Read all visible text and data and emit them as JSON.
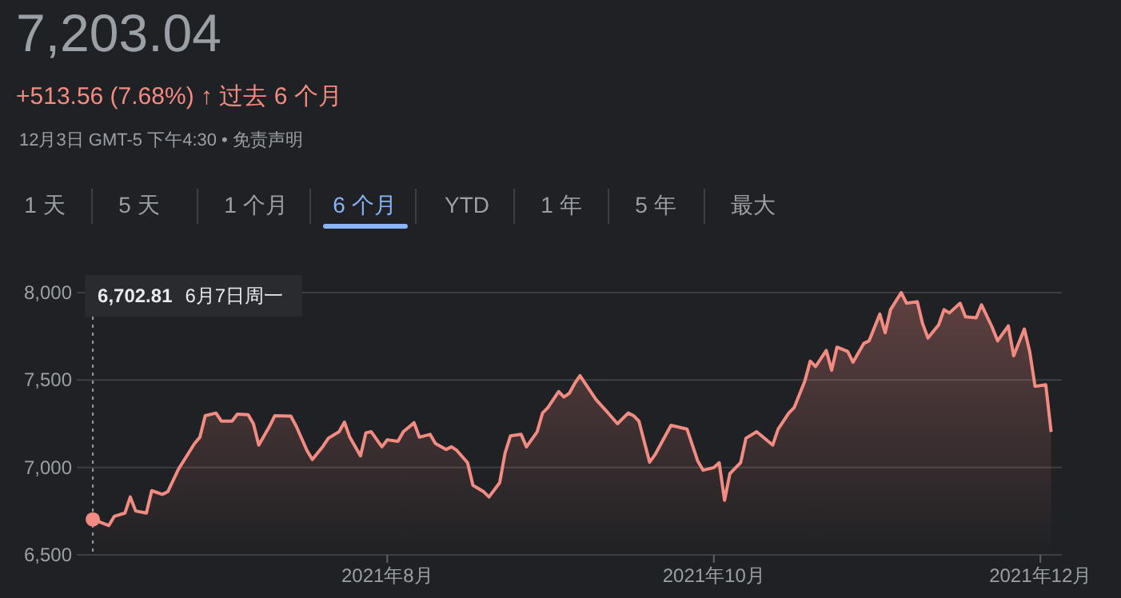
{
  "chart_data": {
    "type": "area",
    "title": "7,203.04",
    "subtitle": "+513.56 (7.68%) ↑ 过去 6 个月",
    "x": [
      "2021-06-07",
      "2021-06-10",
      "2021-06-11",
      "2021-06-13",
      "2021-06-14",
      "2021-06-15",
      "2021-06-17",
      "2021-06-18",
      "2021-06-20",
      "2021-06-21",
      "2021-06-23",
      "2021-06-26",
      "2021-06-27",
      "2021-06-28",
      "2021-06-30",
      "2021-07-01",
      "2021-07-03",
      "2021-07-04",
      "2021-07-06",
      "2021-07-07",
      "2021-07-08",
      "2021-07-10",
      "2021-07-11",
      "2021-07-14",
      "2021-07-15",
      "2021-07-17",
      "2021-07-18",
      "2021-07-20",
      "2021-07-21",
      "2021-07-23",
      "2021-07-24",
      "2021-07-25",
      "2021-07-27",
      "2021-07-28",
      "2021-07-29",
      "2021-07-31",
      "2021-08-01",
      "2021-08-03",
      "2021-08-04",
      "2021-08-06",
      "2021-08-07",
      "2021-08-09",
      "2021-08-10",
      "2021-08-12",
      "2021-08-13",
      "2021-08-14",
      "2021-08-16",
      "2021-08-17",
      "2021-08-19",
      "2021-08-20",
      "2021-08-22",
      "2021-08-23",
      "2021-08-24",
      "2021-08-26",
      "2021-08-27",
      "2021-08-29",
      "2021-08-30",
      "2021-08-31",
      "2021-09-02",
      "2021-09-03",
      "2021-09-04",
      "2021-09-05",
      "2021-09-06",
      "2021-09-08",
      "2021-09-09",
      "2021-09-11",
      "2021-09-13",
      "2021-09-15",
      "2021-09-16",
      "2021-09-17",
      "2021-09-19",
      "2021-09-20",
      "2021-09-23",
      "2021-09-26",
      "2021-09-28",
      "2021-09-29",
      "2021-10-01",
      "2021-10-02",
      "2021-10-03",
      "2021-10-04",
      "2021-10-06",
      "2021-10-07",
      "2021-10-09",
      "2021-10-12",
      "2021-10-13",
      "2021-10-15",
      "2021-10-16",
      "2021-10-18",
      "2021-10-19",
      "2021-10-20",
      "2021-10-22",
      "2021-10-23",
      "2021-10-24",
      "2021-10-26",
      "2021-10-27",
      "2021-10-29",
      "2021-10-30",
      "2021-11-01",
      "2021-11-02",
      "2021-11-03",
      "2021-11-05",
      "2021-11-06",
      "2021-11-08",
      "2021-11-09",
      "2021-11-10",
      "2021-11-12",
      "2021-11-13",
      "2021-11-14",
      "2021-11-16",
      "2021-11-17",
      "2021-11-19",
      "2021-11-20",
      "2021-11-22",
      "2021-11-23",
      "2021-11-25",
      "2021-11-26",
      "2021-11-28",
      "2021-11-29",
      "2021-11-30",
      "2021-12-02",
      "2021-12-03"
    ],
    "series": [
      {
        "color": "#f28b82",
        "values": [
          6702.81,
          6668,
          6720,
          6739,
          6831,
          6751,
          6739,
          6867,
          6846,
          6861,
          6990,
          7137,
          7173,
          7296,
          7311,
          7265,
          7265,
          7305,
          7302,
          7250,
          7128,
          7235,
          7296,
          7293,
          7235,
          7097,
          7045,
          7121,
          7167,
          7204,
          7259,
          7173,
          7066,
          7198,
          7204,
          7118,
          7158,
          7149,
          7204,
          7256,
          7173,
          7189,
          7137,
          7103,
          7118,
          7097,
          7027,
          6898,
          6861,
          6831,
          6913,
          7082,
          7180,
          7189,
          7118,
          7204,
          7311,
          7342,
          7434,
          7403,
          7424,
          7480,
          7525,
          7434,
          7388,
          7320,
          7250,
          7311,
          7296,
          7265,
          7030,
          7072,
          7241,
          7219,
          7036,
          6984,
          6999,
          7027,
          6812,
          6965,
          7027,
          7167,
          7204,
          7128,
          7219,
          7311,
          7342,
          7495,
          7608,
          7577,
          7669,
          7556,
          7688,
          7663,
          7602,
          7709,
          7724,
          7877,
          7770,
          7902,
          8000,
          7939,
          7948,
          7822,
          7740,
          7816,
          7902,
          7884,
          7939,
          7862,
          7856,
          7930,
          7801,
          7724,
          7810,
          7639,
          7792,
          7663,
          7464,
          7473,
          7203.04
        ]
      }
    ],
    "xlim": [
      "2021-06-04",
      "2021-12-05"
    ],
    "xticks": [
      {
        "value": "2021-08-01",
        "label": "2021年8月"
      },
      {
        "value": "2021-10-01",
        "label": "2021年10月"
      },
      {
        "value": "2021-12-01",
        "label": "2021年12月"
      }
    ],
    "ylim": [
      6500,
      8000
    ],
    "yticks": [
      {
        "value": 6500,
        "label": "6,500"
      },
      {
        "value": 7000,
        "label": "7,000"
      },
      {
        "value": 7500,
        "label": "7,500"
      },
      {
        "value": 8000,
        "label": "8,000"
      }
    ],
    "grid": "y",
    "ref_lines": [
      {
        "axis": "x",
        "value": "2021-06-07",
        "line_style": "dotted",
        "color": "#9aa0a6"
      }
    ],
    "annotations": [
      "6,702.81  6月7日周一",
      "12月3日 GMT-5 下午4:30 • 免责声明",
      "1 天",
      "5 天",
      "1 个月",
      "6 个月",
      "YTD",
      "1 年",
      "5 年",
      "最大"
    ]
  }
}
